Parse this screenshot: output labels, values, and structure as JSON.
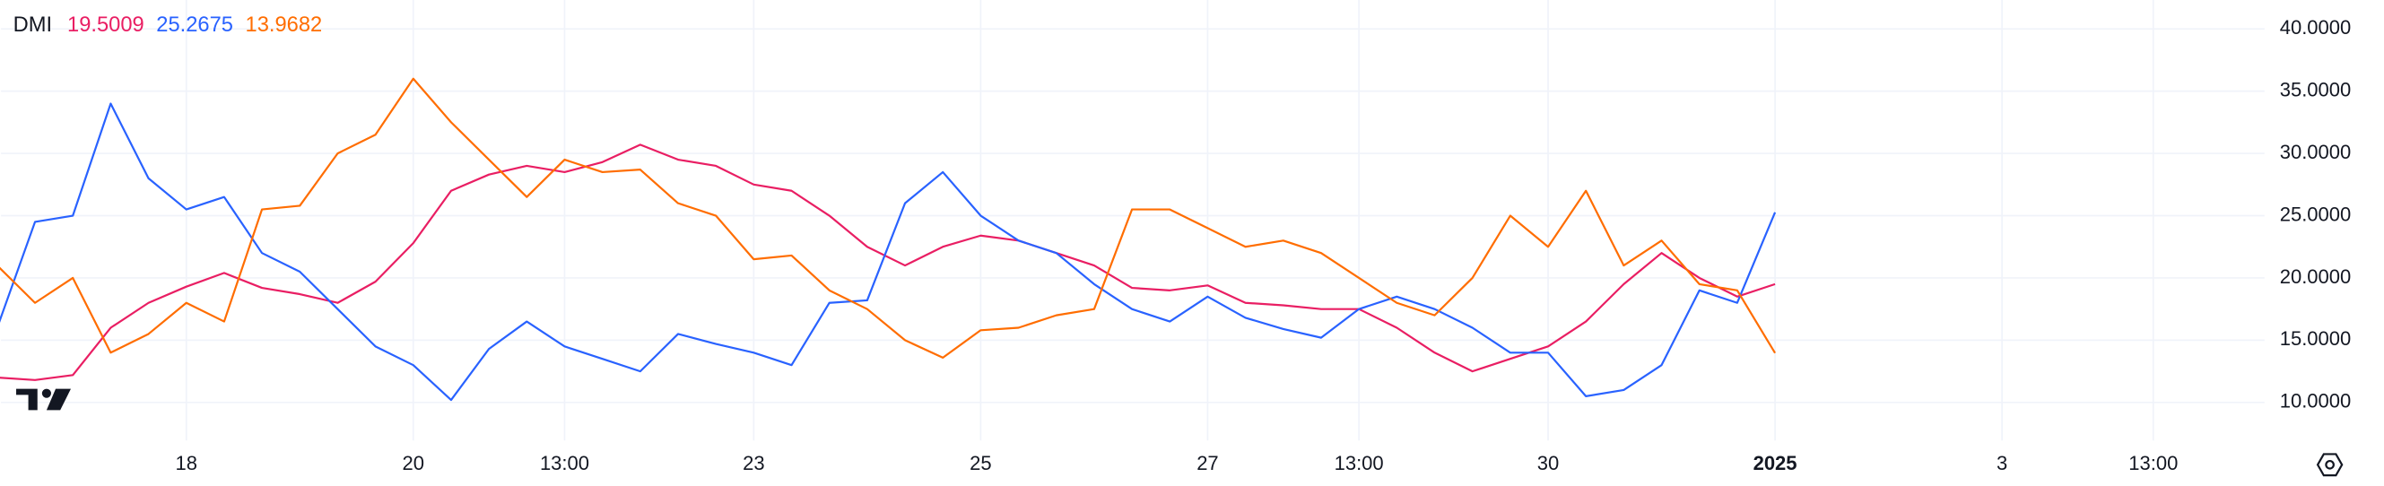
{
  "chart_data": {
    "type": "line",
    "title": "DMI",
    "x": [
      null,
      null,
      null,
      null,
      null,
      "18",
      null,
      null,
      null,
      null,
      null,
      "20",
      null,
      null,
      null,
      "13:00",
      null,
      null,
      null,
      null,
      "23",
      null,
      null,
      null,
      null,
      null,
      "25",
      null,
      null,
      null,
      null,
      null,
      "27",
      null,
      null,
      null,
      "13:00",
      null,
      null,
      null,
      null,
      "30",
      null,
      null,
      null,
      null,
      null,
      "2025",
      null,
      null,
      null,
      null,
      null,
      "3",
      null,
      null,
      null,
      "13:00",
      null
    ],
    "series": [
      {
        "color": "#e91e63",
        "values": [
          12,
          11.8,
          12.2,
          16,
          18,
          19.3,
          20.4,
          19.2,
          18.7,
          18,
          19.7,
          22.8,
          27,
          28.3,
          29,
          28.5,
          29.3,
          30.7,
          29.5,
          29,
          27.5,
          27,
          25,
          22.5,
          21,
          22.5,
          23.4,
          23,
          22,
          21,
          19.2,
          19,
          19.4,
          18,
          17.8,
          17.5,
          17.5,
          16,
          14,
          12.5,
          13.5,
          14.5,
          16.5,
          19.5,
          22,
          20,
          18.5,
          19.5009,
          null,
          null,
          null,
          null,
          null,
          null,
          null,
          null,
          null,
          null,
          null
        ]
      },
      {
        "color": "#2962ff",
        "values": [
          16,
          24.5,
          25,
          34,
          28,
          25.5,
          26.5,
          22,
          20.5,
          17.5,
          14.5,
          13,
          10.2,
          14.3,
          16.5,
          14.5,
          13.5,
          12.5,
          15.5,
          14.7,
          14,
          13,
          18,
          18.2,
          26,
          28.5,
          25,
          23,
          22,
          19.5,
          17.5,
          16.5,
          18.5,
          16.8,
          15.9,
          15.2,
          17.5,
          18.5,
          17.5,
          16,
          14,
          14,
          10.5,
          11,
          13,
          19,
          18,
          25.2675,
          null,
          null,
          null,
          null,
          null,
          null,
          null,
          null,
          null,
          null,
          null
        ]
      },
      {
        "color": "#ff6d00",
        "values": [
          21,
          18,
          20,
          14,
          15.5,
          18,
          16.5,
          25.5,
          25.8,
          30,
          31.5,
          36,
          32.5,
          29.5,
          26.5,
          29.5,
          28.5,
          28.7,
          26,
          25,
          21.5,
          21.8,
          19,
          17.5,
          15,
          13.6,
          15.8,
          16,
          17,
          17.5,
          25.5,
          25.5,
          24,
          22.5,
          23,
          22,
          20,
          18,
          17,
          20,
          25,
          22.5,
          27,
          21,
          23,
          19.5,
          19,
          13.9682,
          null,
          null,
          null,
          null,
          null,
          null,
          null,
          null,
          null,
          null,
          null
        ]
      }
    ],
    "ylim": [
      6.95,
      42.32
    ],
    "yticks": [
      {
        "value": 10,
        "label": "10.0000"
      },
      {
        "value": 15,
        "label": "15.0000"
      },
      {
        "value": 20,
        "label": "20.0000"
      },
      {
        "value": 25,
        "label": "25.0000"
      },
      {
        "value": 30,
        "label": "30.0000"
      },
      {
        "value": 35,
        "label": "35.0000"
      },
      {
        "value": 40,
        "label": "40.0000"
      }
    ],
    "grid": true
  }
}
